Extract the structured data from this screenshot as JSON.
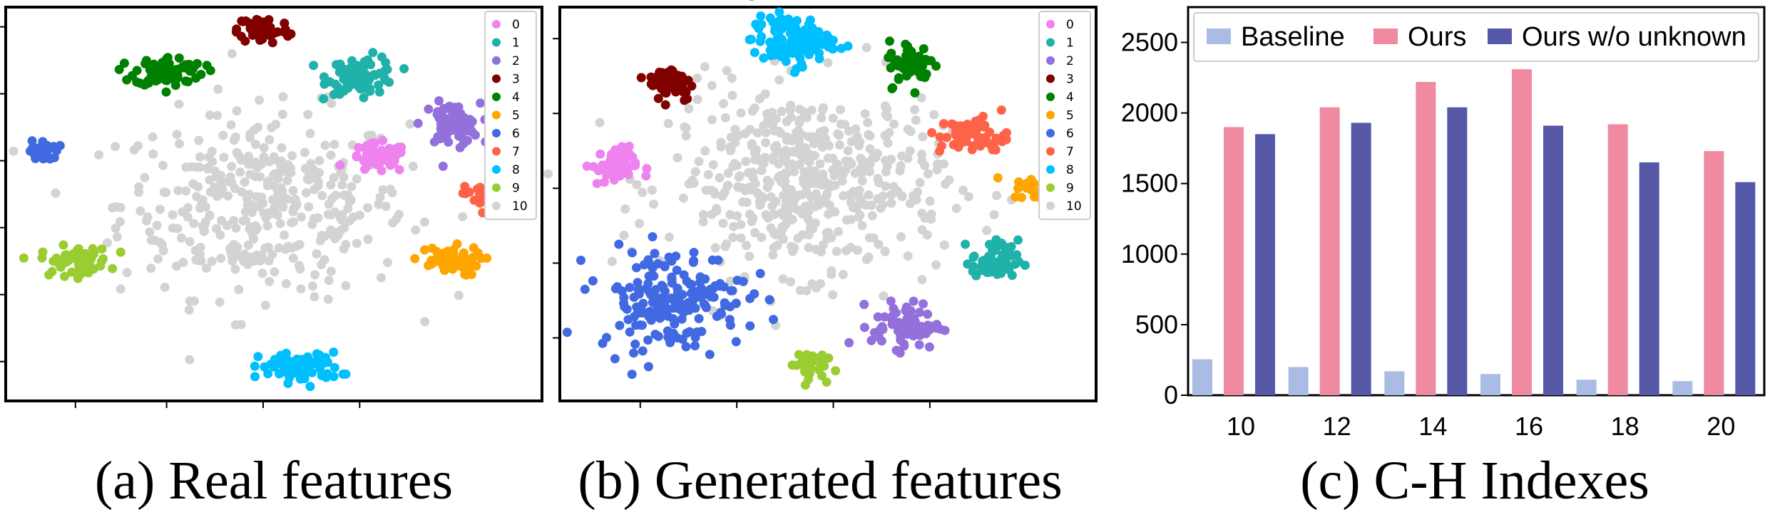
{
  "panels": {
    "a": {
      "caption": "(a) Real features",
      "legend": [
        "0",
        "1",
        "2",
        "3",
        "4",
        "5",
        "6",
        "7",
        "8",
        "9",
        "10"
      ]
    },
    "b": {
      "caption": "(b) Generated features",
      "legend": [
        "0",
        "1",
        "2",
        "3",
        "4",
        "5",
        "6",
        "7",
        "8",
        "9",
        "10"
      ]
    },
    "c": {
      "caption": "(c) C-H Indexes"
    }
  },
  "class_colors": [
    "#ee82ee",
    "#20b2aa",
    "#9370db",
    "#800000",
    "#008000",
    "#ffa500",
    "#4169e1",
    "#ff6347",
    "#00bfff",
    "#9acd32",
    "#d3d3d3"
  ],
  "chart_data": [
    {
      "type": "scatter",
      "panel": "a",
      "title": "(a) Real features",
      "legend": [
        "0",
        "1",
        "2",
        "3",
        "4",
        "5",
        "6",
        "7",
        "8",
        "9",
        "10"
      ],
      "legend_placement": "top-right",
      "clusters": [
        {
          "label": "0",
          "cx": 0.7,
          "cy": 0.62,
          "rx": 0.05,
          "ry": 0.035,
          "n": 60
        },
        {
          "label": "1",
          "cx": 0.67,
          "cy": 0.84,
          "rx": 0.06,
          "ry": 0.045,
          "n": 80
        },
        {
          "label": "2",
          "cx": 0.84,
          "cy": 0.71,
          "rx": 0.05,
          "ry": 0.05,
          "n": 70
        },
        {
          "label": "3",
          "cx": 0.48,
          "cy": 0.96,
          "rx": 0.045,
          "ry": 0.035,
          "n": 60
        },
        {
          "label": "4",
          "cx": 0.3,
          "cy": 0.85,
          "rx": 0.06,
          "ry": 0.035,
          "n": 80
        },
        {
          "label": "5",
          "cx": 0.83,
          "cy": 0.35,
          "rx": 0.06,
          "ry": 0.035,
          "n": 60
        },
        {
          "label": "6",
          "cx": 0.06,
          "cy": 0.64,
          "rx": 0.025,
          "ry": 0.025,
          "n": 25
        },
        {
          "label": "7",
          "cx": 0.91,
          "cy": 0.52,
          "rx": 0.04,
          "ry": 0.035,
          "n": 40
        },
        {
          "label": "8",
          "cx": 0.55,
          "cy": 0.07,
          "rx": 0.07,
          "ry": 0.035,
          "n": 80
        },
        {
          "label": "9",
          "cx": 0.12,
          "cy": 0.35,
          "rx": 0.06,
          "ry": 0.035,
          "n": 60
        },
        {
          "label": "10",
          "cx": 0.48,
          "cy": 0.5,
          "rx": 0.25,
          "ry": 0.22,
          "n": 380
        }
      ]
    },
    {
      "type": "scatter",
      "panel": "b",
      "title": "(b) Generated features",
      "legend": [
        "0",
        "1",
        "2",
        "3",
        "4",
        "5",
        "6",
        "7",
        "8",
        "9",
        "10"
      ],
      "legend_placement": "top-right",
      "clusters": [
        {
          "label": "0",
          "cx": 0.09,
          "cy": 0.6,
          "rx": 0.04,
          "ry": 0.045,
          "n": 50
        },
        {
          "label": "1",
          "cx": 0.82,
          "cy": 0.35,
          "rx": 0.04,
          "ry": 0.05,
          "n": 60
        },
        {
          "label": "2",
          "cx": 0.65,
          "cy": 0.18,
          "rx": 0.06,
          "ry": 0.055,
          "n": 70
        },
        {
          "label": "3",
          "cx": 0.2,
          "cy": 0.82,
          "rx": 0.04,
          "ry": 0.045,
          "n": 55
        },
        {
          "label": "4",
          "cx": 0.66,
          "cy": 0.87,
          "rx": 0.04,
          "ry": 0.055,
          "n": 55
        },
        {
          "label": "5",
          "cx": 0.9,
          "cy": 0.54,
          "rx": 0.04,
          "ry": 0.025,
          "n": 30
        },
        {
          "label": "6",
          "cx": 0.2,
          "cy": 0.25,
          "rx": 0.13,
          "ry": 0.12,
          "n": 180
        },
        {
          "label": "7",
          "cx": 0.78,
          "cy": 0.68,
          "rx": 0.06,
          "ry": 0.045,
          "n": 70
        },
        {
          "label": "8",
          "cx": 0.43,
          "cy": 0.93,
          "rx": 0.07,
          "ry": 0.06,
          "n": 110
        },
        {
          "label": "9",
          "cx": 0.46,
          "cy": 0.08,
          "rx": 0.03,
          "ry": 0.035,
          "n": 35
        },
        {
          "label": "10",
          "cx": 0.46,
          "cy": 0.56,
          "rx": 0.24,
          "ry": 0.22,
          "n": 500
        }
      ]
    },
    {
      "type": "bar",
      "panel": "c",
      "title": "(c) C-H Indexes",
      "categories": [
        "10",
        "12",
        "14",
        "16",
        "18",
        "20"
      ],
      "series": [
        {
          "name": "Baseline",
          "color": "#aabbe4",
          "values": [
            255,
            200,
            170,
            150,
            110,
            100
          ]
        },
        {
          "name": "Ours",
          "color": "#f08aa0",
          "values": [
            1900,
            2040,
            2220,
            2310,
            1920,
            1730
          ]
        },
        {
          "name": "Ours w/o unknown",
          "color": "#5558a6",
          "values": [
            1850,
            1930,
            2040,
            1910,
            1650,
            1510
          ]
        }
      ],
      "yticks": [
        0,
        500,
        1000,
        1500,
        2000,
        2500
      ],
      "ylim": [
        0,
        2750
      ],
      "legend_placement": "top",
      "xlabel": "",
      "ylabel": ""
    }
  ]
}
